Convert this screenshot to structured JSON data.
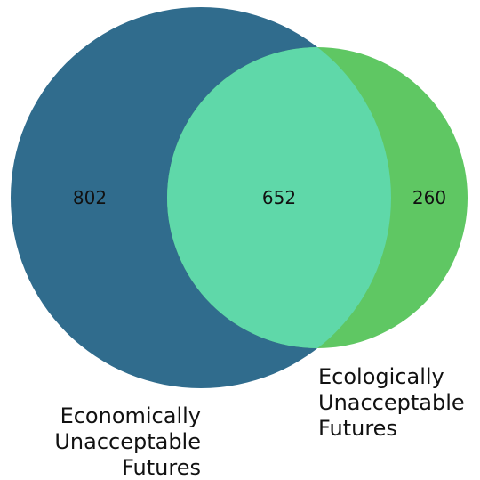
{
  "chart_data": {
    "type": "venn",
    "sets": [
      {
        "name": "Economically Unacceptable Futures",
        "label_lines": [
          "Economically",
          "Unacceptable",
          "Futures"
        ],
        "only_count": 802,
        "color": "#306c8d"
      },
      {
        "name": "Ecologically Unacceptable Futures",
        "label_lines": [
          "Ecologically",
          "Unacceptable",
          "Futures"
        ],
        "only_count": 260,
        "color": "#5fc763"
      }
    ],
    "intersection": {
      "count": 652,
      "color": "#5fd8a9"
    }
  }
}
